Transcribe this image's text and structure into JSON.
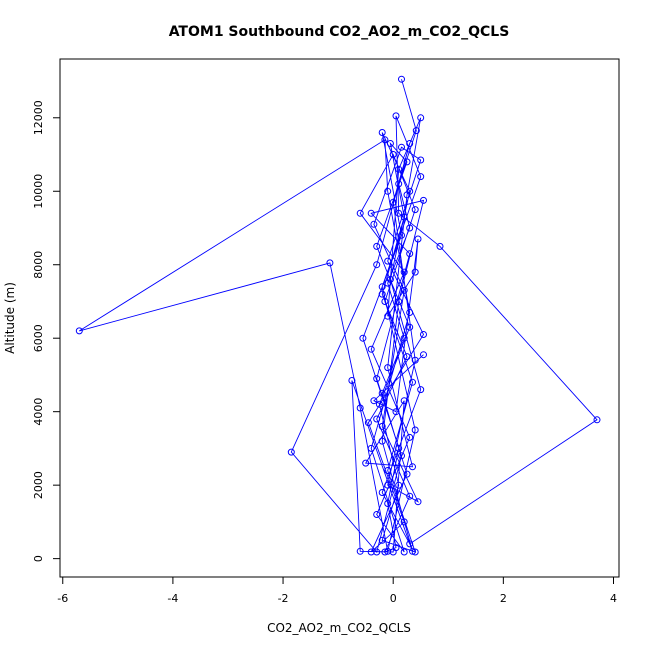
{
  "chart_data": {
    "type": "line",
    "title": "ATOM1 Southbound CO2_AO2_m_CO2_QCLS",
    "xlabel": "CO2_AO2_m_CO2_QCLS",
    "ylabel": "Altitude (m)",
    "xlim": [
      -6.05,
      4.1
    ],
    "ylim": [
      -500,
      13600
    ],
    "x_ticks": [
      -6,
      -4,
      -2,
      0,
      2,
      4
    ],
    "y_ticks": [
      0,
      2000,
      4000,
      6000,
      8000,
      10000,
      12000
    ],
    "grid": false,
    "legend": "none",
    "series": [
      {
        "color": "#0000ff",
        "marker": "open-circle",
        "points": [
          {
            "x": 0.15,
            "y": 13050
          },
          {
            "x": 0.42,
            "y": 11650
          },
          {
            "x": 0.1,
            "y": 10200
          },
          {
            "x": 0.3,
            "y": 9000
          },
          {
            "x": -0.1,
            "y": 7500
          },
          {
            "x": 0.2,
            "y": 6000
          },
          {
            "x": -0.2,
            "y": 4500
          },
          {
            "x": 0.1,
            "y": 3000
          },
          {
            "x": -0.1,
            "y": 1500
          },
          {
            "x": 0.05,
            "y": 300
          },
          {
            "x": -0.15,
            "y": 180
          },
          {
            "x": 0.3,
            "y": 1700
          },
          {
            "x": -0.3,
            "y": 3800
          },
          {
            "x": 0.25,
            "y": 5500
          },
          {
            "x": -0.2,
            "y": 7200
          },
          {
            "x": 0.2,
            "y": 9300
          },
          {
            "x": -0.05,
            "y": 11300
          },
          {
            "x": 0.25,
            "y": 10800
          },
          {
            "x": -0.3,
            "y": 8500
          },
          {
            "x": 0.3,
            "y": 6300
          },
          {
            "x": -0.25,
            "y": 4200
          },
          {
            "x": 0.1,
            "y": 2000
          },
          {
            "x": -0.2,
            "y": 500
          },
          {
            "x": 0.4,
            "y": 180
          },
          {
            "x": -0.1,
            "y": 2400
          },
          {
            "x": 0.35,
            "y": 4800
          },
          {
            "x": -0.15,
            "y": 7000
          },
          {
            "x": 0.4,
            "y": 9500
          },
          {
            "x": 0.0,
            "y": 11000
          },
          {
            "x": -0.6,
            "y": 9400
          },
          {
            "x": 0.2,
            "y": 7800
          },
          {
            "x": -0.4,
            "y": 5700
          },
          {
            "x": 0.3,
            "y": 3300
          },
          {
            "x": -0.3,
            "y": 1200
          },
          {
            "x": 0.2,
            "y": 180
          },
          {
            "x": -0.4,
            "y": 3000
          },
          {
            "x": 0.3,
            "y": 6700
          },
          {
            "x": -0.1,
            "y": 10000
          },
          {
            "x": -0.15,
            "y": 11400
          },
          {
            "x": -5.7,
            "y": 6200
          },
          {
            "x": -1.15,
            "y": 8050
          },
          {
            "x": -0.6,
            "y": 4100
          },
          {
            "x": -0.1,
            "y": 200
          },
          {
            "x": 0.4,
            "y": 3500
          },
          {
            "x": -0.2,
            "y": 7400
          },
          {
            "x": 0.5,
            "y": 10400
          },
          {
            "x": 0.05,
            "y": 12050
          },
          {
            "x": 0.1,
            "y": 9400
          },
          {
            "x": 0.85,
            "y": 8500
          },
          {
            "x": 3.7,
            "y": 3780
          },
          {
            "x": 0.3,
            "y": 400
          },
          {
            "x": -0.2,
            "y": 1800
          },
          {
            "x": 0.5,
            "y": 4600
          },
          {
            "x": -0.05,
            "y": 7600
          },
          {
            "x": 0.3,
            "y": 10000
          },
          {
            "x": -0.2,
            "y": 11600
          },
          {
            "x": 0.15,
            "y": 8800
          },
          {
            "x": -0.55,
            "y": 6000
          },
          {
            "x": 0.15,
            "y": 2800
          },
          {
            "x": -0.3,
            "y": 180
          },
          {
            "x": -1.85,
            "y": 2900
          },
          {
            "x": -0.3,
            "y": 8000
          },
          {
            "x": 0.3,
            "y": 11300
          },
          {
            "x": 0.0,
            "y": 9700
          },
          {
            "x": 0.4,
            "y": 5400
          },
          {
            "x": -0.1,
            "y": 2000
          },
          {
            "x": 0.45,
            "y": 1550
          },
          {
            "x": -0.2,
            "y": 3600
          },
          {
            "x": 0.2,
            "y": 7300
          },
          {
            "x": -0.35,
            "y": 9100
          },
          {
            "x": 0.15,
            "y": 11200
          },
          {
            "x": 0.5,
            "y": 10850
          },
          {
            "x": -0.1,
            "y": 8100
          },
          {
            "x": 0.55,
            "y": 6100
          },
          {
            "x": -0.45,
            "y": 3700
          },
          {
            "x": 0.2,
            "y": 1000
          },
          {
            "x": -0.4,
            "y": 180
          },
          {
            "x": 0.25,
            "y": 2300
          },
          {
            "x": -0.3,
            "y": 4900
          },
          {
            "x": 0.3,
            "y": 8300
          },
          {
            "x": -0.4,
            "y": 9400
          },
          {
            "x": 0.55,
            "y": 9750
          },
          {
            "x": 0.1,
            "y": 7000
          },
          {
            "x": -0.2,
            "y": 3200
          },
          {
            "x": 0.35,
            "y": 200
          },
          {
            "x": -0.75,
            "y": 4850
          },
          {
            "x": -0.6,
            "y": 200
          },
          {
            "x": 0.0,
            "y": 180
          },
          {
            "x": 0.2,
            "y": 4300
          },
          {
            "x": -0.5,
            "y": 2600
          },
          {
            "x": 0.35,
            "y": 2500
          },
          {
            "x": -0.1,
            "y": 5200
          },
          {
            "x": 0.25,
            "y": 9900
          },
          {
            "x": 0.5,
            "y": 12000
          },
          {
            "x": 0.1,
            "y": 10600
          },
          {
            "x": -0.1,
            "y": 6600
          },
          {
            "x": 0.4,
            "y": 7800
          },
          {
            "x": 0.45,
            "y": 8700
          },
          {
            "x": 0.05,
            "y": 4000
          },
          {
            "x": -0.35,
            "y": 4300
          },
          {
            "x": 0.55,
            "y": 5550
          }
        ]
      }
    ]
  }
}
